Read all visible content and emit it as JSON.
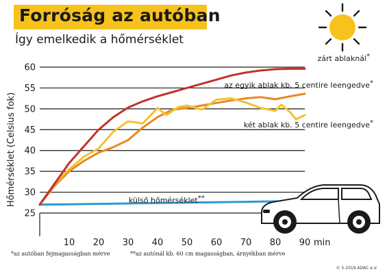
{
  "title": "Forróság az autóban",
  "subtitle": "Így emelkedik a hőmérséklet",
  "footnote_1": "*az autóban fejmagasságban mérve",
  "footnote_2": "**az autónál kb. 60 cm magasságban, árnyékban mérve",
  "credit": "© 5.2019 ADAC e.V.",
  "icons": [
    "sun-icon",
    "car-icon"
  ],
  "colors": {
    "title_bg": "#f6c21b",
    "sun": "#f6c21b",
    "closed_windows": "#c0322c",
    "one_window": "#e58a24",
    "two_windows": "#f2c130",
    "outside": "#2f96d3",
    "grid": "#1a1a1a"
  },
  "chart_data": {
    "type": "line",
    "ylabel": "Hőmérséklet (Celsius fok)",
    "x_unit": "min",
    "x_ticks": [
      10,
      20,
      30,
      40,
      50,
      60,
      70,
      80,
      90
    ],
    "y_ticks": [
      25,
      30,
      35,
      40,
      45,
      50,
      55,
      60
    ],
    "xlim": [
      0,
      90
    ],
    "ylim": [
      25,
      60
    ],
    "grid": "horizontal",
    "series": [
      {
        "name": "zárt ablaknál",
        "marker": "*",
        "color": "#c0322c",
        "x": [
          0,
          5,
          10,
          15,
          20,
          25,
          30,
          35,
          40,
          45,
          50,
          55,
          60,
          65,
          70,
          75,
          80,
          85,
          90
        ],
        "values": [
          27,
          32,
          37,
          41,
          45,
          48,
          50.3,
          51.8,
          53,
          54,
          55,
          56,
          57,
          58,
          58.7,
          59.2,
          59.5,
          59.6,
          59.6
        ]
      },
      {
        "name": "az egyik ablak kb. 5 centire leengedve",
        "marker": "*",
        "color": "#e58a24",
        "x": [
          0,
          5,
          10,
          15,
          20,
          25,
          30,
          35,
          40,
          45,
          50,
          55,
          60,
          65,
          70,
          75,
          80,
          85,
          90
        ],
        "values": [
          27,
          31.5,
          35,
          37.5,
          39.5,
          40.8,
          42.5,
          45.5,
          48,
          49.8,
          50.2,
          50.8,
          51.4,
          52,
          52.5,
          52.8,
          52.3,
          53,
          53.6
        ]
      },
      {
        "name": "két ablak kb. 5 centire leengedve",
        "marker": "*",
        "color": "#f2c130",
        "x": [
          0,
          5,
          10,
          15,
          20,
          25,
          30,
          35,
          40,
          43,
          47,
          50,
          55,
          60,
          65,
          70,
          75,
          80,
          82,
          85,
          87,
          90
        ],
        "values": [
          27,
          32,
          35.5,
          38.5,
          40.5,
          44.5,
          47,
          46.5,
          50.2,
          48.5,
          50.4,
          50.8,
          49.8,
          52.2,
          52.5,
          51.5,
          50.2,
          49.5,
          51,
          49.2,
          47.5,
          48.5
        ]
      },
      {
        "name": "külső hőmérséklet",
        "marker": "**",
        "color": "#2f96d3",
        "x": [
          0,
          10,
          20,
          30,
          40,
          50,
          60,
          70,
          80,
          90
        ],
        "values": [
          27,
          27.1,
          27.2,
          27.3,
          27.4,
          27.5,
          27.6,
          27.7,
          27.8,
          27.9
        ]
      }
    ]
  }
}
